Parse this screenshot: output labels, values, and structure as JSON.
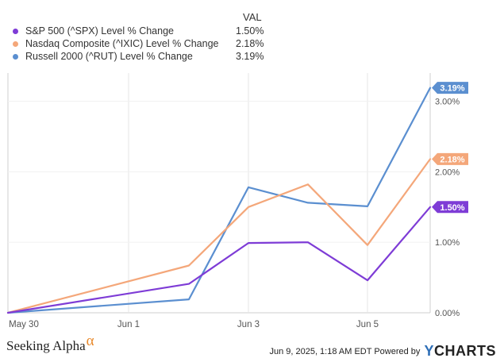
{
  "legend": {
    "header": "VAL",
    "items": [
      {
        "label": "S&P 500 (^SPX) Level % Change",
        "value": "1.50%",
        "color": "#7e3cd6"
      },
      {
        "label": "Nasdaq Composite (^IXIC) Level % Change",
        "value": "2.18%",
        "color": "#f4a77a"
      },
      {
        "label": "Russell 2000 (^RUT) Level % Change",
        "value": "3.19%",
        "color": "#5b8fd0"
      }
    ]
  },
  "chart_data": {
    "type": "line",
    "x": [
      "May 30",
      "Jun 2",
      "Jun 3",
      "Jun 4",
      "Jun 5",
      "Jun 6"
    ],
    "xticks": [
      "May 30",
      "Jun 1",
      "Jun 3",
      "Jun 5"
    ],
    "yticks": [
      "0.00%",
      "1.00%",
      "2.00%",
      "3.00%"
    ],
    "ylim": [
      0,
      3.4
    ],
    "series": [
      {
        "name": "S&P 500 (^SPX) Level % Change",
        "values": [
          0,
          0.41,
          0.99,
          1.0,
          0.46,
          1.5
        ],
        "end_label": "1.50%",
        "color": "#7e3cd6"
      },
      {
        "name": "Nasdaq Composite (^IXIC) Level % Change",
        "values": [
          0,
          0.67,
          1.5,
          1.82,
          0.96,
          2.18
        ],
        "end_label": "2.18%",
        "color": "#f4a77a"
      },
      {
        "name": "Russell 2000 (^RUT) Level % Change",
        "values": [
          0,
          0.19,
          1.78,
          1.56,
          1.51,
          3.19
        ],
        "end_label": "3.19%",
        "color": "#5b8fd0"
      }
    ]
  },
  "footer": {
    "brand": "Seeking Alpha",
    "brand_symbol": "α",
    "timestamp": "Jun 9, 2025, 1:18 AM EDT Powered by",
    "logo_y": "Y",
    "logo_rest": "CHARTS"
  }
}
